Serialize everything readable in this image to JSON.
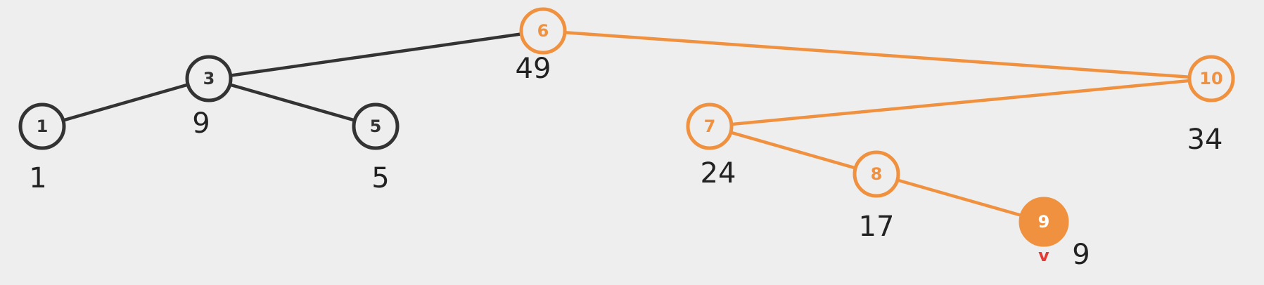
{
  "colors": {
    "background": "#eeeeee",
    "default_stroke": "#333333",
    "highlight": "#f0913f",
    "node_fill": "#eeeeee",
    "selected_text": "#ffffff",
    "marker": "#e53935",
    "sum_text": "#222222"
  },
  "nodes": [
    {
      "id": "n6",
      "key": "6",
      "sum": "49",
      "state": "highlight"
    },
    {
      "id": "n3",
      "key": "3",
      "sum": "9",
      "state": "default"
    },
    {
      "id": "n1",
      "key": "1",
      "sum": "1",
      "state": "default"
    },
    {
      "id": "n5",
      "key": "5",
      "sum": "5",
      "state": "default"
    },
    {
      "id": "n10",
      "key": "10",
      "sum": "34",
      "state": "highlight"
    },
    {
      "id": "n7",
      "key": "7",
      "sum": "24",
      "state": "highlight"
    },
    {
      "id": "n8",
      "key": "8",
      "sum": "17",
      "state": "highlight"
    },
    {
      "id": "n9",
      "key": "9",
      "sum": "9",
      "state": "selected"
    }
  ],
  "edges": [
    {
      "from": "n6",
      "to": "n3",
      "state": "default"
    },
    {
      "from": "n3",
      "to": "n1",
      "state": "default"
    },
    {
      "from": "n3",
      "to": "n5",
      "state": "default"
    },
    {
      "from": "n6",
      "to": "n10",
      "state": "highlight"
    },
    {
      "from": "n10",
      "to": "n7",
      "state": "highlight"
    },
    {
      "from": "n7",
      "to": "n8",
      "state": "highlight"
    },
    {
      "from": "n8",
      "to": "n9",
      "state": "highlight"
    }
  ],
  "marker": {
    "text": "v",
    "node": "n9"
  }
}
